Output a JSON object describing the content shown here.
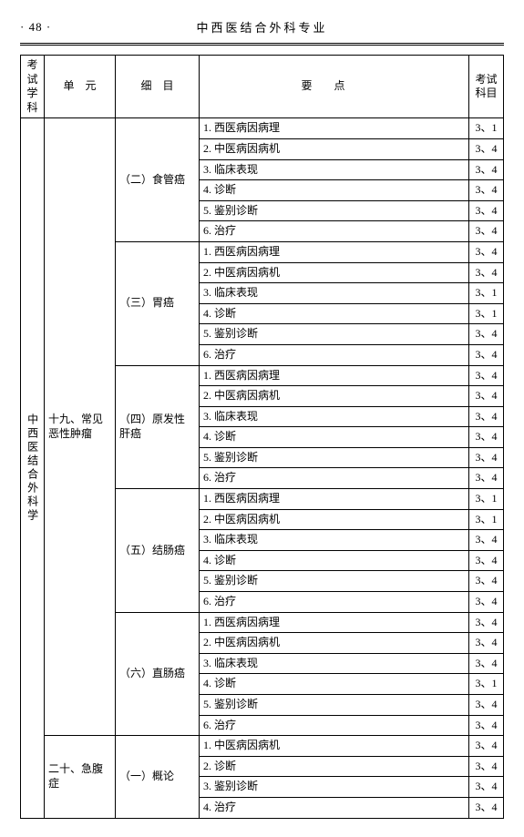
{
  "page_number": "· 48 ·",
  "header_title": "中西医结合外科专业",
  "columns": {
    "c0": "考试学科",
    "c1": "单　元",
    "c2": "细　目",
    "c3": "要点",
    "c4": "考试科目"
  },
  "subject": "中西医结合外科学",
  "units": [
    {
      "label": "十九、常见恶性肿瘤",
      "sections": [
        {
          "label": "（二）食管癌",
          "points": [
            {
              "t": "1. 西医病因病理",
              "k": "3、1"
            },
            {
              "t": "2. 中医病因病机",
              "k": "3、4"
            },
            {
              "t": "3. 临床表现",
              "k": "3、4"
            },
            {
              "t": "4. 诊断",
              "k": "3、4"
            },
            {
              "t": "5. 鉴别诊断",
              "k": "3、4"
            },
            {
              "t": "6. 治疗",
              "k": "3、4"
            }
          ]
        },
        {
          "label": "（三）胃癌",
          "points": [
            {
              "t": "1. 西医病因病理",
              "k": "3、4"
            },
            {
              "t": "2. 中医病因病机",
              "k": "3、4"
            },
            {
              "t": "3. 临床表现",
              "k": "3、1"
            },
            {
              "t": "4. 诊断",
              "k": "3、1"
            },
            {
              "t": "5. 鉴别诊断",
              "k": "3、4"
            },
            {
              "t": "6. 治疗",
              "k": "3、4"
            }
          ]
        },
        {
          "label": "（四）原发性肝癌",
          "points": [
            {
              "t": "1. 西医病因病理",
              "k": "3、4"
            },
            {
              "t": "2. 中医病因病机",
              "k": "3、4"
            },
            {
              "t": "3. 临床表现",
              "k": "3、4"
            },
            {
              "t": "4. 诊断",
              "k": "3、4"
            },
            {
              "t": "5. 鉴别诊断",
              "k": "3、4"
            },
            {
              "t": "6. 治疗",
              "k": "3、4"
            }
          ]
        },
        {
          "label": "（五）结肠癌",
          "points": [
            {
              "t": "1. 西医病因病理",
              "k": "3、1"
            },
            {
              "t": "2. 中医病因病机",
              "k": "3、1"
            },
            {
              "t": "3. 临床表现",
              "k": "3、4"
            },
            {
              "t": "4. 诊断",
              "k": "3、4"
            },
            {
              "t": "5. 鉴别诊断",
              "k": "3、4"
            },
            {
              "t": "6. 治疗",
              "k": "3、4"
            }
          ]
        },
        {
          "label": "（六）直肠癌",
          "points": [
            {
              "t": "1. 西医病因病理",
              "k": "3、4"
            },
            {
              "t": "2. 中医病因病机",
              "k": "3、4"
            },
            {
              "t": "3. 临床表现",
              "k": "3、4"
            },
            {
              "t": "4. 诊断",
              "k": "3、1"
            },
            {
              "t": "5. 鉴别诊断",
              "k": "3、4"
            },
            {
              "t": "6. 治疗",
              "k": "3、4"
            }
          ]
        }
      ]
    },
    {
      "label": "二十、急腹症",
      "sections": [
        {
          "label": "（一）概论",
          "points": [
            {
              "t": "1. 中医病因病机",
              "k": "3、4"
            },
            {
              "t": "2. 诊断",
              "k": "3、4"
            },
            {
              "t": "3. 鉴别诊断",
              "k": "3、4"
            },
            {
              "t": "4. 治疗",
              "k": "3、4"
            }
          ]
        }
      ]
    }
  ]
}
